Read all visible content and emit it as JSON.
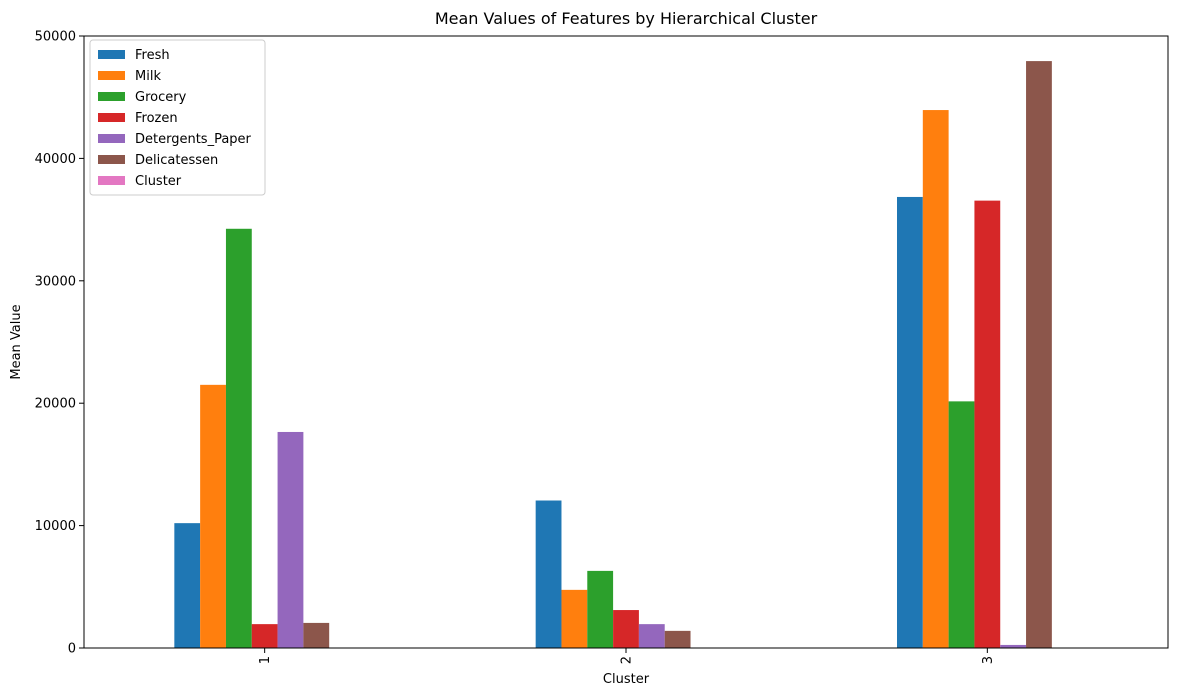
{
  "chart_data": {
    "type": "bar",
    "title": "Mean Values of Features by Hierarchical Cluster",
    "xlabel": "Cluster",
    "ylabel": "Mean Value",
    "categories": [
      "1",
      "2",
      "3"
    ],
    "ylim": [
      0,
      50000
    ],
    "yticks": [
      0,
      10000,
      20000,
      30000,
      40000,
      50000
    ],
    "grid": false,
    "legend_position": "top-left",
    "series": [
      {
        "name": "Fresh",
        "color": "#1f77b4",
        "values": [
          10200,
          12050,
          36850
        ]
      },
      {
        "name": "Milk",
        "color": "#ff7f0e",
        "values": [
          21500,
          4750,
          43950
        ]
      },
      {
        "name": "Grocery",
        "color": "#2ca02c",
        "values": [
          34250,
          6300,
          20150
        ]
      },
      {
        "name": "Frozen",
        "color": "#d62728",
        "values": [
          1950,
          3100,
          36550
        ]
      },
      {
        "name": "Detergents_Paper",
        "color": "#9467bd",
        "values": [
          17650,
          1950,
          250
        ]
      },
      {
        "name": "Delicatessen",
        "color": "#8c564b",
        "values": [
          2050,
          1400,
          47950
        ]
      },
      {
        "name": "Cluster",
        "color": "#e377c2",
        "values": [
          1,
          2,
          3
        ]
      }
    ]
  }
}
